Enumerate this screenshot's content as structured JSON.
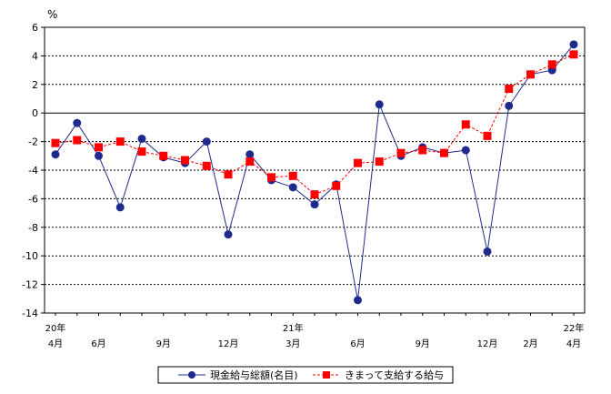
{
  "chart_data": {
    "type": "line",
    "unit_label": "%",
    "ylim": [
      -14,
      6
    ],
    "yticks": [
      6,
      4,
      2,
      0,
      -2,
      -4,
      -6,
      -8,
      -10,
      -12,
      -14
    ],
    "grid": true,
    "x_tick_labels": [
      {
        "index": 0,
        "top": "20年",
        "bottom": "4月"
      },
      {
        "index": 2,
        "top": "",
        "bottom": "6月"
      },
      {
        "index": 5,
        "top": "",
        "bottom": "9月"
      },
      {
        "index": 8,
        "top": "",
        "bottom": "12月"
      },
      {
        "index": 11,
        "top": "21年",
        "bottom": "3月"
      },
      {
        "index": 14,
        "top": "",
        "bottom": "6月"
      },
      {
        "index": 17,
        "top": "",
        "bottom": "9月"
      },
      {
        "index": 20,
        "top": "",
        "bottom": "12月"
      },
      {
        "index": 22,
        "top": "",
        "bottom": "2月"
      },
      {
        "index": 24,
        "top": "22年",
        "bottom": "4月"
      }
    ],
    "series": [
      {
        "name": "現金給与総額(名目)",
        "color": "#1f2b8c",
        "marker": "circle",
        "line": "solid",
        "values": [
          -2.9,
          -0.7,
          -3.0,
          -6.6,
          -1.8,
          -3.1,
          -3.5,
          -2.0,
          -8.5,
          -2.9,
          -4.7,
          -5.2,
          -6.4,
          -5.0,
          -13.1,
          0.6,
          -3.0,
          -2.4,
          -2.8,
          -2.6,
          -9.7,
          0.5,
          2.7,
          3.0,
          4.8
        ]
      },
      {
        "name": "きまって支給する給与",
        "color": "#ff0000",
        "marker": "square",
        "line": "dashed",
        "values": [
          -2.1,
          -1.9,
          -2.4,
          -2.0,
          -2.7,
          -3.0,
          -3.3,
          -3.7,
          -4.3,
          -3.4,
          -4.5,
          -4.4,
          -5.7,
          -5.1,
          -3.5,
          -3.4,
          -2.8,
          -2.6,
          -2.8,
          -0.8,
          -1.6,
          1.7,
          2.7,
          3.4,
          4.1
        ]
      }
    ],
    "legend_position": "bottom"
  }
}
